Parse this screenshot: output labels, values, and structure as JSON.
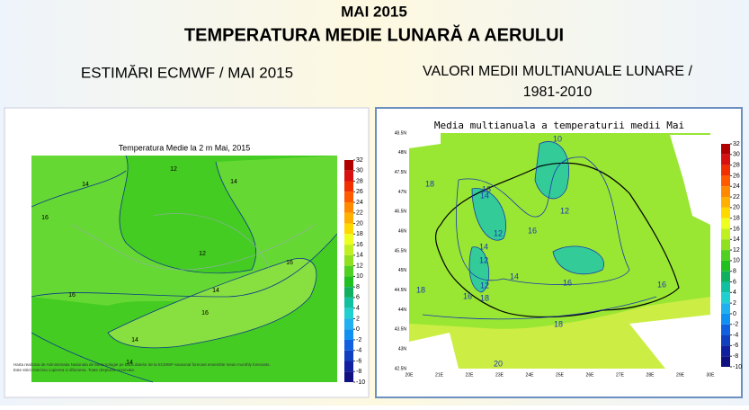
{
  "header": {
    "title": "MAI 2015",
    "subtitle": "TEMPERATURA MEDIE LUNARĂ A AERULUI"
  },
  "left": {
    "caption": "ESTIMĂRI ECMWF / MAI 2015",
    "map_title": "Temperatura Medie la 2 m Mai, 2015",
    "contour_labels": [
      "12",
      "14",
      "14",
      "16",
      "12",
      "16",
      "14",
      "16",
      "16",
      "14",
      "14"
    ],
    "footer": [
      "Harta realizata de Administratia Nationala de Meteorologie pe baza datelor de la ECMWF-seasonal forecast ensemble mean monthly forecasts.",
      "Este strict interzisa copierea si difuzarea. Toate drepturile rezervate."
    ],
    "colorbar": [
      32,
      30,
      28,
      26,
      24,
      22,
      20,
      18,
      16,
      14,
      12,
      10,
      8,
      6,
      4,
      2,
      0,
      -2,
      -4,
      -6,
      -8,
      -10
    ]
  },
  "right": {
    "caption_lines": [
      "VALORI MEDII MULTIANUALE LUNARE /",
      "1981-2010"
    ],
    "map_title": "Media multianuala a temperaturii medii Mai",
    "lat_labels": [
      "48.5N",
      "48N",
      "47.5N",
      "47N",
      "46.5N",
      "46N",
      "45.5N",
      "45N",
      "44.5N",
      "44N",
      "43.5N",
      "43N",
      "42.5N"
    ],
    "lon_labels": [
      "20E",
      "21E",
      "22E",
      "23E",
      "24E",
      "25E",
      "26E",
      "27E",
      "28E",
      "29E",
      "30E"
    ],
    "contour_labels": [
      "10",
      "18",
      "16",
      "14",
      "12",
      "16",
      "12",
      "14",
      "12",
      "14",
      "16",
      "18",
      "18",
      "16",
      "12",
      "18",
      "20",
      "16"
    ],
    "colorbar": [
      32,
      30,
      28,
      26,
      24,
      22,
      20,
      18,
      16,
      14,
      12,
      10,
      8,
      6,
      4,
      2,
      0,
      -2,
      -4,
      -6,
      -8,
      -10
    ]
  },
  "palette": [
    "#b00000",
    "#d81010",
    "#f03000",
    "#ff5a00",
    "#ff8a00",
    "#ffb000",
    "#ffd800",
    "#eeff20",
    "#c0f020",
    "#90e020",
    "#50d020",
    "#20c020",
    "#10b060",
    "#10c0a0",
    "#20d0d0",
    "#20b0f0",
    "#1090f0",
    "#1060e0",
    "#1040c0",
    "#1020a0",
    "#101080"
  ]
}
